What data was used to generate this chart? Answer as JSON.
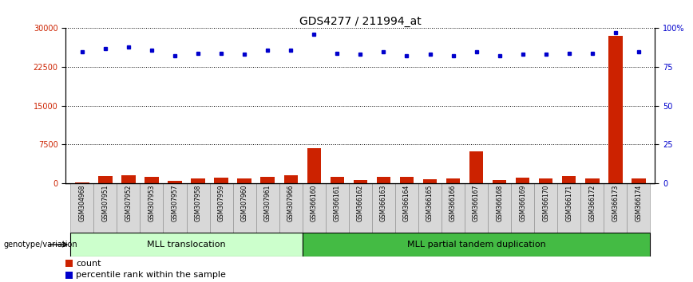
{
  "title": "GDS4277 / 211994_at",
  "samples": [
    "GSM304968",
    "GSM307951",
    "GSM307952",
    "GSM307953",
    "GSM307957",
    "GSM307958",
    "GSM307959",
    "GSM307960",
    "GSM307961",
    "GSM307966",
    "GSM366160",
    "GSM366161",
    "GSM366162",
    "GSM366163",
    "GSM366164",
    "GSM366165",
    "GSM366166",
    "GSM366167",
    "GSM366168",
    "GSM366169",
    "GSM366170",
    "GSM366171",
    "GSM366172",
    "GSM366173",
    "GSM366174"
  ],
  "counts": [
    200,
    1400,
    1600,
    1300,
    500,
    900,
    1100,
    1000,
    1200,
    1500,
    6800,
    1200,
    600,
    1300,
    1200,
    800,
    900,
    6200,
    700,
    1100,
    900,
    1400,
    900,
    28500,
    1000
  ],
  "percentile_ranks": [
    85,
    87,
    88,
    86,
    82,
    84,
    84,
    83,
    86,
    86,
    96,
    84,
    83,
    85,
    82,
    83,
    82,
    85,
    82,
    83,
    83,
    84,
    84,
    97,
    85
  ],
  "group1_label": "MLL translocation",
  "group2_label": "MLL partial tandem duplication",
  "group1_count": 10,
  "group2_count": 15,
  "ylim_left": [
    0,
    30000
  ],
  "ylim_right": [
    0,
    100
  ],
  "yticks_left": [
    0,
    7500,
    15000,
    22500,
    30000
  ],
  "yticks_right": [
    0,
    25,
    50,
    75,
    100
  ],
  "bar_color": "#cc2200",
  "dot_color": "#0000cc",
  "group1_color": "#ccffcc",
  "group2_color": "#44bb44",
  "title_fontsize": 10,
  "tick_fontsize": 7,
  "label_fontsize": 8,
  "legend_fontsize": 8
}
